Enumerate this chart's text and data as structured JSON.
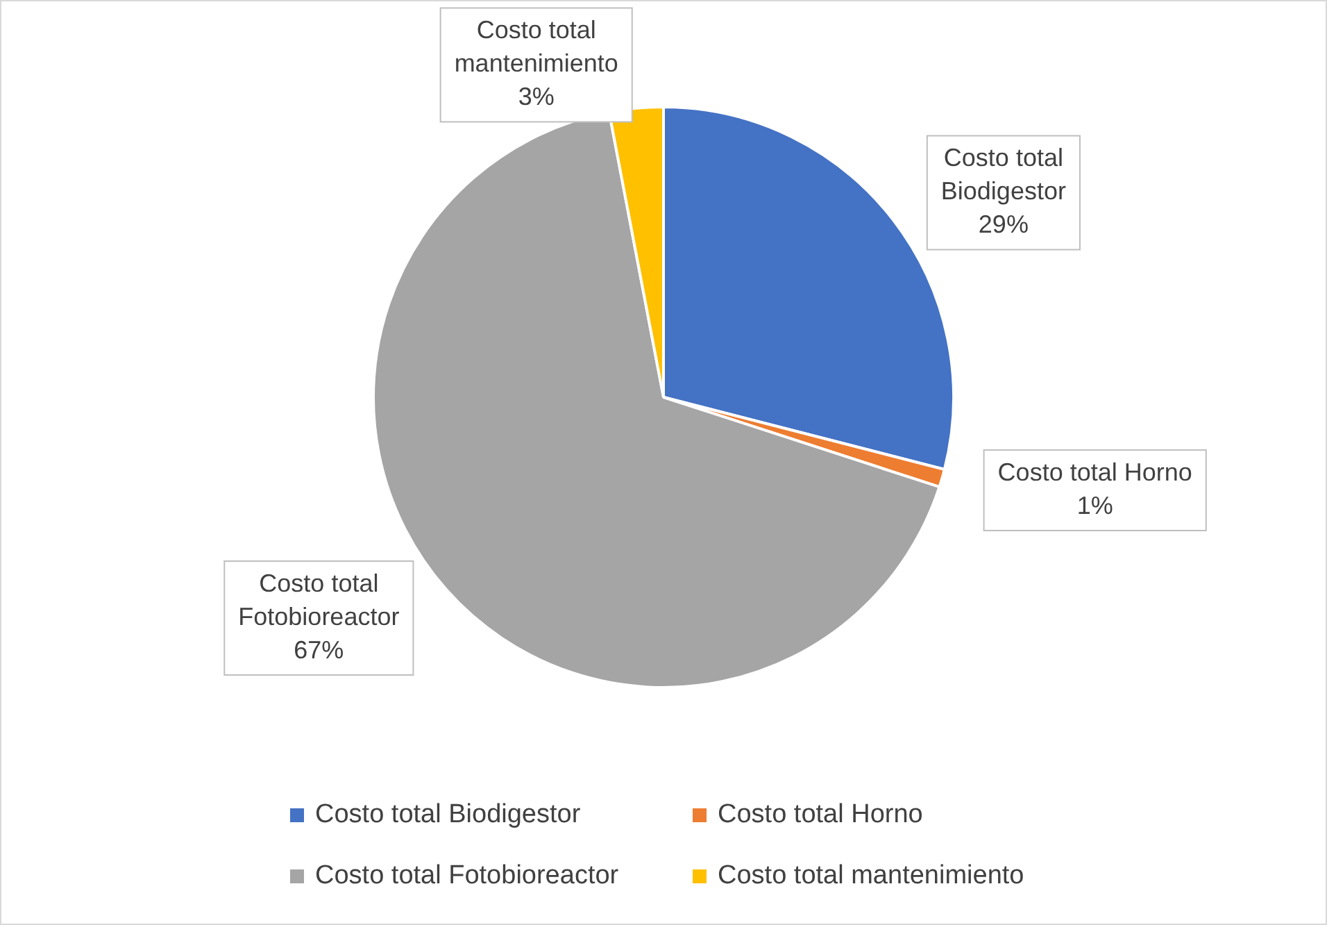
{
  "chart_data": {
    "type": "pie",
    "categories": [
      "Costo total Biodigestor",
      "Costo total Horno",
      "Costo total Fotobioreactor",
      "Costo total mantenimiento"
    ],
    "values": [
      29,
      1,
      67,
      3
    ],
    "colors": [
      "#4472c4",
      "#ed7d31",
      "#a5a5a5",
      "#ffc000"
    ],
    "value_labels": [
      "29%",
      "1%",
      "67%",
      "3%"
    ],
    "legend": "bottom"
  }
}
